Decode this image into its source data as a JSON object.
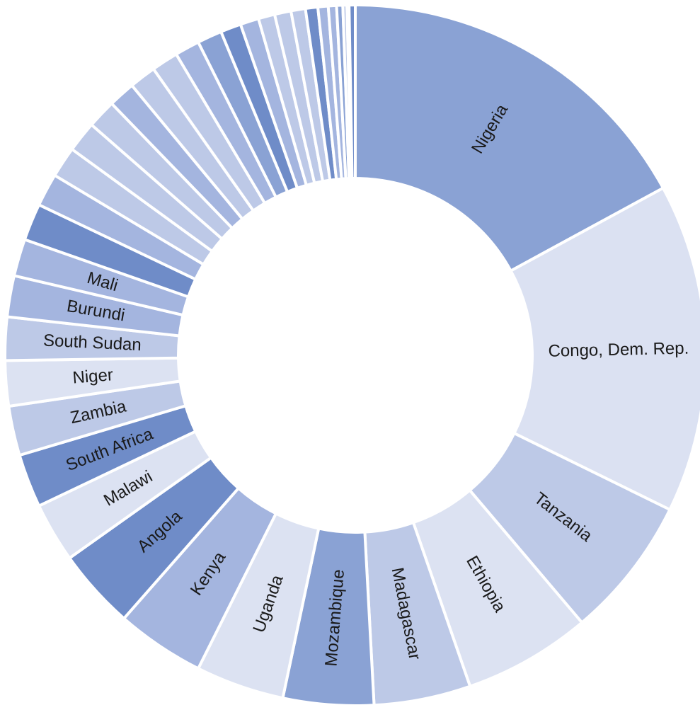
{
  "chart_data": {
    "type": "pie",
    "style": "donut",
    "title": "",
    "start": "top",
    "direction": "clockwise",
    "labels_on_slices": true,
    "legend": "none",
    "palette": [
      "#8aa2d4",
      "#dbe1f2",
      "#bdc9e7",
      "#dce2f2",
      "#8aa2d4",
      "#dce2f2",
      "#a4b5df",
      "#6f8cc8",
      "#dce2f2",
      "#6f8cc8",
      "#bdc9e7",
      "#dce2f2",
      "#bdc9e7",
      "#a4b5df"
    ],
    "slices": [
      {
        "label": "Nigeria",
        "value": 18.0,
        "color": "#8aa2d4"
      },
      {
        "label": "Congo, Dem. Rep.",
        "value": 16.0,
        "color": "#dbe1f2"
      },
      {
        "label": "Tanzania",
        "value": 6.9,
        "color": "#bdc9e7"
      },
      {
        "label": "Ethiopia",
        "value": 6.2,
        "color": "#dce2f2"
      },
      {
        "label": "Madagascar",
        "value": 4.7,
        "color": "#bdc9e7"
      },
      {
        "label": "Mozambique",
        "value": 4.4,
        "color": "#8aa2d4"
      },
      {
        "label": "Uganda",
        "value": 4.3,
        "color": "#dce2f2"
      },
      {
        "label": "Kenya",
        "value": 4.3,
        "color": "#a4b5df"
      },
      {
        "label": "Angola",
        "value": 3.9,
        "color": "#6f8cc8"
      },
      {
        "label": "Malawi",
        "value": 2.9,
        "color": "#dce2f2"
      },
      {
        "label": "South Africa",
        "value": 2.6,
        "color": "#6f8cc8"
      },
      {
        "label": "Zambia",
        "value": 2.4,
        "color": "#bdc9e7"
      },
      {
        "label": "Niger",
        "value": 2.2,
        "color": "#dce2f2"
      },
      {
        "label": "South Sudan",
        "value": 2.1,
        "color": "#bdc9e7"
      },
      {
        "label": "Burundi",
        "value": 2.0,
        "color": "#a4b5df"
      },
      {
        "label": "Mali",
        "value": 1.8,
        "color": "#a4b5df"
      },
      {
        "label": "",
        "value": 1.8,
        "color": "#6f8cc8"
      },
      {
        "label": "",
        "value": 1.6,
        "color": "#a4b5df"
      },
      {
        "label": "",
        "value": 1.5,
        "color": "#bdc9e7"
      },
      {
        "label": "",
        "value": 1.5,
        "color": "#bdc9e7"
      },
      {
        "label": "",
        "value": 1.4,
        "color": "#bdc9e7"
      },
      {
        "label": "",
        "value": 1.3,
        "color": "#a4b5df"
      },
      {
        "label": "",
        "value": 1.3,
        "color": "#bdc9e7"
      },
      {
        "label": "",
        "value": 1.3,
        "color": "#bdc9e7"
      },
      {
        "label": "",
        "value": 1.2,
        "color": "#a4b5df"
      },
      {
        "label": "",
        "value": 1.2,
        "color": "#8aa2d4"
      },
      {
        "label": "",
        "value": 1.0,
        "color": "#6f8cc8"
      },
      {
        "label": "",
        "value": 0.9,
        "color": "#a4b5df"
      },
      {
        "label": "",
        "value": 0.8,
        "color": "#bdc9e7"
      },
      {
        "label": "",
        "value": 0.8,
        "color": "#bdc9e7"
      },
      {
        "label": "",
        "value": 0.7,
        "color": "#bdc9e7"
      },
      {
        "label": "",
        "value": 0.6,
        "color": "#6f8cc8"
      },
      {
        "label": "",
        "value": 0.5,
        "color": "#a4b5df"
      },
      {
        "label": "",
        "value": 0.4,
        "color": "#a4b5df"
      },
      {
        "label": "",
        "value": 0.3,
        "color": "#8aa2d4"
      },
      {
        "label": "",
        "value": 0.2,
        "color": "#bdc9e7"
      },
      {
        "label": "",
        "value": 0.1,
        "color": "#6f8cc8"
      },
      {
        "label": "",
        "value": 0.3,
        "color": "#6f8cc8"
      }
    ]
  }
}
